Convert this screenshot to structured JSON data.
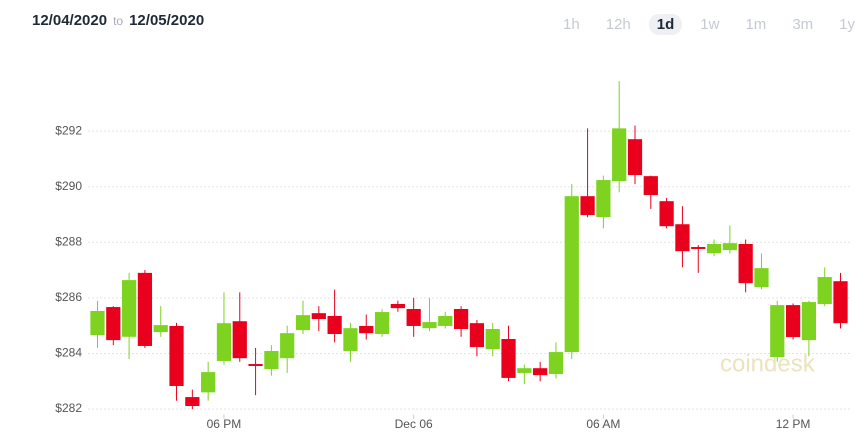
{
  "header": {
    "from": "12/04/2020",
    "to_word": "to",
    "to": "12/05/2020",
    "ranges": [
      "1h",
      "12h",
      "1d",
      "1w",
      "1m",
      "3m",
      "1y"
    ],
    "selected_range": "1d"
  },
  "watermark": "coindesk",
  "chart_data": {
    "type": "candlestick",
    "up_color": "#7ed321",
    "down_color": "#e8001c",
    "grid": true,
    "x": [
      14,
      14.5,
      15,
      15.5,
      16,
      16.5,
      17,
      17.5,
      18,
      18.5,
      19,
      19.5,
      20,
      20.5,
      21,
      21.5,
      22,
      22.5,
      23,
      23.5,
      24,
      24.5,
      25,
      25.5,
      26,
      26.5,
      27,
      27.5,
      28,
      28.5,
      29,
      29.5,
      30,
      30.5,
      31,
      31.5,
      32,
      32.5,
      33,
      33.5,
      34,
      34.5,
      35,
      35.5,
      36,
      36.5,
      37,
      37.5
    ],
    "open": [
      284.66,
      285.67,
      284.6,
      286.9,
      284.77,
      284.99,
      282.43,
      282.6,
      283.73,
      285.16,
      283.62,
      283.44,
      283.83,
      284.84,
      285.45,
      285.35,
      284.09,
      284.99,
      284.7,
      285.78,
      285.6,
      284.91,
      284.99,
      285.6,
      285.09,
      284.16,
      284.52,
      283.3,
      283.47,
      283.26,
      284.05,
      289.66,
      288.91,
      290.2,
      291.71,
      290.38,
      289.48,
      288.65,
      287.83,
      287.61,
      287.72,
      287.94,
      286.39,
      283.87,
      285.74,
      284.48,
      285.78,
      286.6
    ],
    "high": [
      285.9,
      285.7,
      286.9,
      287.0,
      285.7,
      285.1,
      282.7,
      283.7,
      286.2,
      286.2,
      284.2,
      284.3,
      285.0,
      285.9,
      285.7,
      286.3,
      285.1,
      285.4,
      285.6,
      285.9,
      286.0,
      286.0,
      285.5,
      285.7,
      285.2,
      285.1,
      285.0,
      283.6,
      283.7,
      284.4,
      290.1,
      292.1,
      290.4,
      293.8,
      292.2,
      290.4,
      289.6,
      289.3,
      287.9,
      288.1,
      288.6,
      288.1,
      287.6,
      285.9,
      285.8,
      285.9,
      287.1,
      286.9
    ],
    "low": [
      284.2,
      284.3,
      283.8,
      284.2,
      284.6,
      282.3,
      282.0,
      282.3,
      283.6,
      283.7,
      282.5,
      283.2,
      283.3,
      284.7,
      284.8,
      284.4,
      283.7,
      284.5,
      284.6,
      285.5,
      284.6,
      284.8,
      284.9,
      284.6,
      283.9,
      283.9,
      283.0,
      282.9,
      283.0,
      283.1,
      283.8,
      288.9,
      288.5,
      289.8,
      290.1,
      289.2,
      288.5,
      287.1,
      286.9,
      287.5,
      287.6,
      286.2,
      286.3,
      283.7,
      284.5,
      283.9,
      285.7,
      284.9
    ],
    "close": [
      285.53,
      284.48,
      286.64,
      284.27,
      285.02,
      282.83,
      282.11,
      283.33,
      285.09,
      283.83,
      283.55,
      284.09,
      284.73,
      285.38,
      285.24,
      284.7,
      284.91,
      284.73,
      285.49,
      285.63,
      284.99,
      285.13,
      285.35,
      284.88,
      284.23,
      284.88,
      283.12,
      283.47,
      283.22,
      284.05,
      289.66,
      288.98,
      290.24,
      292.1,
      290.42,
      289.7,
      288.58,
      287.68,
      287.76,
      287.94,
      287.97,
      286.53,
      287.07,
      285.74,
      284.59,
      285.85,
      286.75,
      285.09
    ],
    "xlim": [
      13.7,
      37.8
    ],
    "xticks": [
      {
        "value": 18,
        "label": "06 PM"
      },
      {
        "value": 24,
        "label": "Dec 06"
      },
      {
        "value": 30,
        "label": "06 AM"
      },
      {
        "value": 36,
        "label": "12 PM"
      }
    ],
    "ylim": [
      281.8,
      294.2
    ],
    "yticks": [
      {
        "value": 282,
        "label": "$282"
      },
      {
        "value": 284,
        "label": "$284"
      },
      {
        "value": 286,
        "label": "$286"
      },
      {
        "value": 288,
        "label": "$288"
      },
      {
        "value": 290,
        "label": "$290"
      },
      {
        "value": 292,
        "label": "$292"
      }
    ]
  }
}
